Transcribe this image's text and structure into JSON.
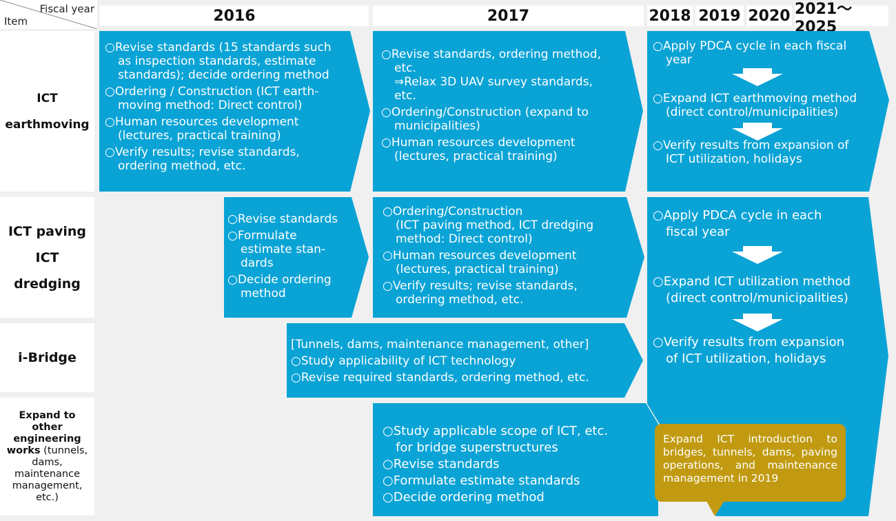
{
  "header": {
    "fiscal_year_label": "Fiscal year",
    "item_label": "Item",
    "years": [
      "2016",
      "2017",
      "2018",
      "2019",
      "2020",
      "2021～2025"
    ]
  },
  "rows": {
    "r1": {
      "label": "ICT earthmoving"
    },
    "r2": {
      "line1": "ICT paving",
      "line2": "ICT dredging"
    },
    "r3": {
      "label": "i-Bridge"
    },
    "r4": {
      "bold1": "Expand to",
      "bold2": "other",
      "bold3": "engineering",
      "bold4": "works",
      "rest1": " (tunnels,",
      "rest2": "dams,",
      "rest3": "maintenance",
      "rest4": "management,",
      "rest5": "etc.)"
    }
  },
  "boxes": {
    "earth2016": [
      [
        "○Revise standards (15 standards such",
        "as inspection standards, estimate",
        "standards); decide ordering method"
      ],
      [
        "○Ordering / Construction (ICT earth-",
        "moving method: Direct control)"
      ],
      [
        "○Human resources development",
        "(lectures, practical training)"
      ],
      [
        "○Verify results; revise standards,",
        "ordering method, etc."
      ]
    ],
    "earth2017": [
      [
        "○Revise standards, ordering method,",
        "etc.",
        "⇒Relax 3D UAV survey standards,",
        "etc."
      ],
      [
        "○Ordering/Construction (expand to",
        "municipalities)"
      ],
      [
        "○Human resources development",
        "(lectures, practical training)"
      ]
    ],
    "earth2018": [
      [
        "○Apply PDCA cycle in each fiscal",
        "year"
      ],
      [
        "○Expand ICT earthmoving method",
        "(direct control/municipalities)"
      ],
      [
        "○Verify results from expansion of",
        "ICT utilization, holidays"
      ]
    ],
    "pave2016": [
      [
        "○Revise standards"
      ],
      [
        "○Formulate",
        "estimate stan-",
        "dards"
      ],
      [
        "○Decide ordering",
        "method"
      ]
    ],
    "pave2017": [
      [
        "○Ordering/Construction",
        "(ICT paving method, ICT dredging",
        "method: Direct control)"
      ],
      [
        "○Human resources development",
        "(lectures, practical training)"
      ],
      [
        "○Verify results; revise standards,",
        "ordering method, etc."
      ]
    ],
    "pave2018": [
      [
        "○Apply PDCA cycle in each",
        "fiscal year"
      ],
      [
        "○Expand ICT utilization method",
        "(direct control/municipalities)"
      ],
      [
        "○Verify results from expansion",
        "of ICT utilization, holidays"
      ]
    ],
    "bridge": [
      [
        "[Tunnels, dams, maintenance management, other]"
      ],
      [
        "○Study applicability of ICT technology"
      ],
      [
        "○Revise required standards, ordering method, etc."
      ]
    ],
    "expand2017": [
      [
        "○Study applicable scope of ICT, etc.",
        "for bridge superstructures"
      ],
      [
        "○Revise standards"
      ],
      [
        "○Formulate estimate standards"
      ],
      [
        "○Decide ordering method"
      ]
    ],
    "callout": "Expand ICT introduction to bridges, tunnels, dams, paving operations, and maintenance management in 2019"
  },
  "colors": {
    "arrow": "#0aa3d6",
    "callout": "#c19a11",
    "background": "#f0f0f0"
  }
}
